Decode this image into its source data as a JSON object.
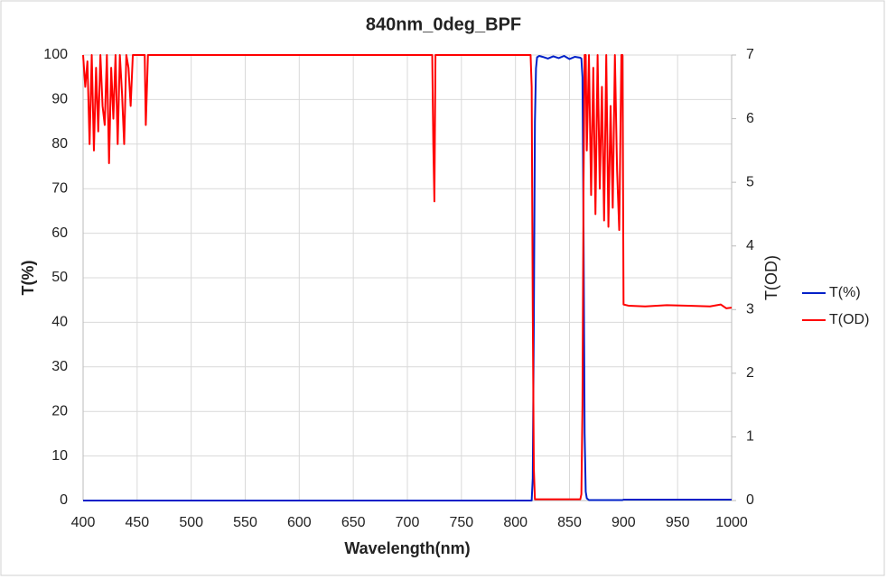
{
  "chart_data": {
    "type": "line",
    "title": "840nm_0deg_BPF",
    "x_label": "Wavelength(nm)",
    "y_label": "T(%)",
    "y2_label": "T(OD)",
    "x": [
      400,
      402,
      404,
      406,
      408,
      410,
      412,
      414,
      416,
      418,
      420,
      422,
      424,
      426,
      428,
      430,
      432,
      434,
      436,
      438,
      440,
      442,
      444,
      446,
      450,
      455,
      457,
      458,
      460,
      500,
      600,
      720,
      723,
      724,
      725,
      726,
      730,
      800,
      814,
      815,
      816,
      817,
      818,
      819,
      820,
      822,
      825,
      830,
      835,
      840,
      845,
      850,
      855,
      860,
      861,
      862,
      863,
      864,
      865,
      866,
      868,
      870,
      872,
      874,
      876,
      878,
      880,
      882,
      884,
      886,
      888,
      890,
      892,
      894,
      896,
      898,
      899,
      900,
      905,
      920,
      940,
      960,
      980,
      990,
      995,
      1000
    ],
    "series": [
      {
        "name": "T(%)",
        "color": "#0020c8",
        "axis": "y",
        "values": [
          0,
          0,
          0,
          0,
          0,
          0,
          0,
          0,
          0,
          0,
          0,
          0,
          0,
          0,
          0,
          0,
          0,
          0,
          0,
          0,
          0,
          0,
          0,
          0,
          0,
          0,
          0,
          0,
          0,
          0,
          0,
          0,
          0,
          0,
          0,
          0,
          0,
          0,
          0,
          0,
          5,
          40,
          85,
          97,
          99.5,
          99.8,
          99.6,
          99.2,
          99.7,
          99.3,
          99.8,
          99.1,
          99.6,
          99.4,
          99.2,
          95,
          60,
          15,
          2,
          0.5,
          0.1,
          0.1,
          0.1,
          0.1,
          0.1,
          0.1,
          0.1,
          0.1,
          0.1,
          0.1,
          0.1,
          0.1,
          0.1,
          0.1,
          0.1,
          0.1,
          0.1,
          0.2,
          0.2,
          0.2,
          0.2,
          0.2,
          0.2,
          0.2,
          0.2,
          0.2
        ]
      },
      {
        "name": "T(OD)",
        "color": "#ff0000",
        "axis": "y2",
        "values": [
          7,
          6.5,
          6.9,
          5.6,
          7,
          5.5,
          6.8,
          5.8,
          7,
          6.2,
          5.9,
          7,
          5.3,
          6.8,
          6.0,
          7,
          5.6,
          7,
          6.4,
          5.6,
          7,
          6.8,
          6.2,
          7,
          7,
          7,
          7,
          5.9,
          7,
          7,
          7,
          7,
          7,
          5.6,
          4.7,
          7,
          7,
          7,
          7,
          6.5,
          3,
          0.5,
          0.02,
          0.02,
          0.02,
          0.02,
          0.02,
          0.02,
          0.02,
          0.02,
          0.02,
          0.02,
          0.02,
          0.02,
          0.1,
          1.5,
          5,
          7,
          7,
          5.5,
          7,
          4.8,
          6.8,
          4.5,
          7,
          4.9,
          6.5,
          4.4,
          7,
          4.3,
          6.2,
          4.6,
          7,
          5.2,
          4.25,
          7,
          7,
          3.08,
          3.06,
          3.05,
          3.07,
          3.06,
          3.05,
          3.08,
          3.02,
          3.03
        ]
      }
    ],
    "xlim": [
      400,
      1000
    ],
    "xticks": [
      400,
      450,
      500,
      550,
      600,
      650,
      700,
      750,
      800,
      850,
      900,
      950,
      1000
    ],
    "ylim": [
      0,
      100
    ],
    "yticks": [
      0,
      10,
      20,
      30,
      40,
      50,
      60,
      70,
      80,
      90,
      100
    ],
    "y2lim": [
      0,
      7
    ],
    "y2ticks": [
      0,
      1,
      2,
      3,
      4,
      5,
      6,
      7
    ],
    "grid": true,
    "legend": "right"
  }
}
